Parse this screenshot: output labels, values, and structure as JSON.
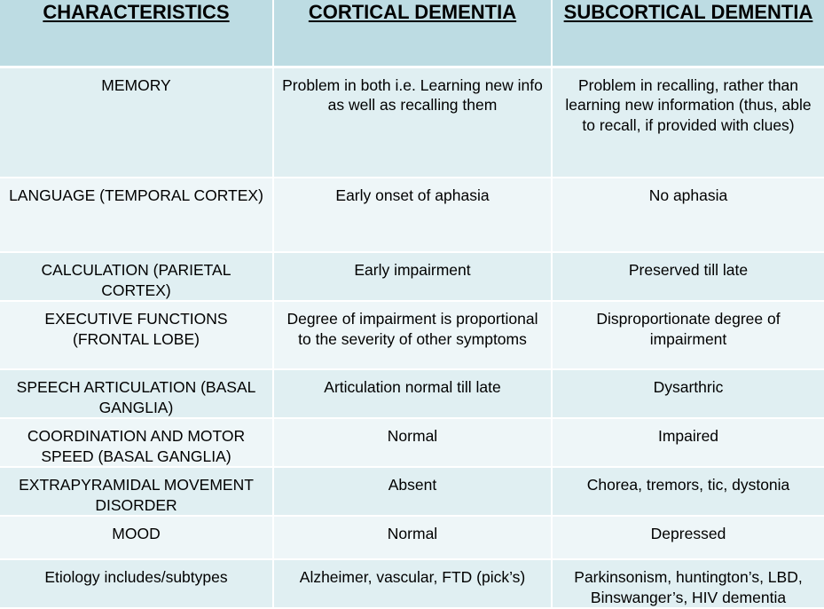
{
  "table": {
    "headers": [
      "CHARACTERISTICS",
      "CORTICAL DEMENTIA",
      "SUBCORTICAL DEMENTIA"
    ],
    "rows": [
      [
        "MEMORY",
        "Problem in both i.e. Learning new info as well as recalling them",
        "Problem in recalling, rather than learning new information (thus, able to recall, if provided with clues)"
      ],
      [
        "LANGUAGE (TEMPORAL CORTEX)",
        "Early onset of aphasia",
        "No aphasia"
      ],
      [
        "CALCULATION (PARIETAL CORTEX)",
        "Early impairment",
        "Preserved till late"
      ],
      [
        "EXECUTIVE FUNCTIONS (FRONTAL LOBE)",
        "Degree of impairment is proportional to the severity of other symptoms",
        "Disproportionate degree of impairment"
      ],
      [
        "SPEECH ARTICULATION (BASAL GANGLIA)",
        "Articulation normal till late",
        "Dysarthric"
      ],
      [
        "COORDINATION AND MOTOR SPEED (BASAL GANGLIA)",
        "Normal",
        "Impaired"
      ],
      [
        "EXTRAPYRAMIDAL MOVEMENT DISORDER",
        "Absent",
        "Chorea, tremors, tic, dystonia"
      ],
      [
        "MOOD",
        "Normal",
        "Depressed"
      ],
      [
        "Etiology includes/subtypes",
        "Alzheimer, vascular, FTD (pick’s)",
        "Parkinsonism, huntington’s, LBD, Binswanger’s, HIV dementia"
      ]
    ]
  }
}
